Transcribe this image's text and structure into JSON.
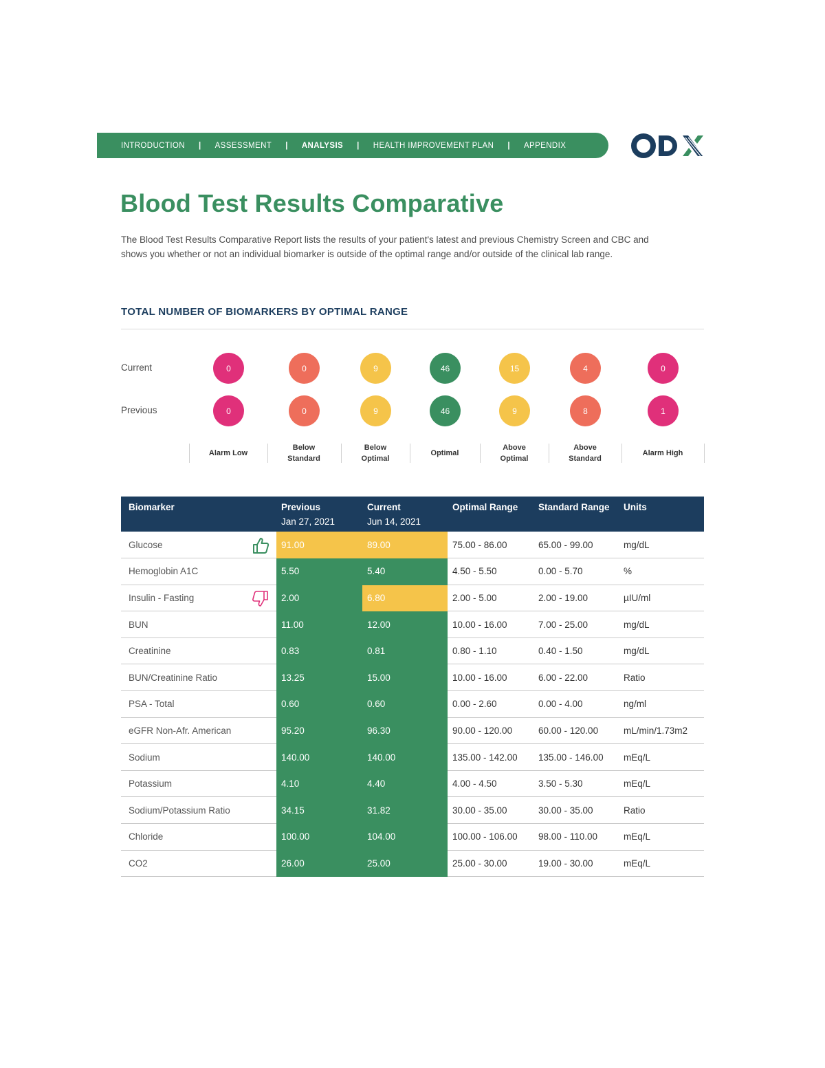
{
  "nav": {
    "items": [
      "INTRODUCTION",
      "ASSESSMENT",
      "ANALYSIS",
      "HEALTH IMPROVEMENT PLAN",
      "APPENDIX"
    ],
    "separator": "|",
    "active": "ANALYSIS"
  },
  "logo": {
    "text": "ODX",
    "colors": [
      "#1c3d5e",
      "#3a8f60"
    ]
  },
  "title": "Blood Test Results Comparative",
  "intro": "The Blood Test Results Comparative Report lists the results of your patient's latest and previous Chemistry Screen and CBC and shows you whether or not an individual biomarker is outside of the optimal range and/or outside of the clinical lab range.",
  "summary": {
    "heading": "TOTAL NUMBER OF BIOMARKERS BY OPTIMAL RANGE",
    "rows": [
      {
        "label": "Current",
        "values": [
          "0",
          "0",
          "9",
          "46",
          "15",
          "4",
          "0"
        ]
      },
      {
        "label": "Previous",
        "values": [
          "0",
          "0",
          "9",
          "46",
          "9",
          "8",
          "1"
        ]
      }
    ],
    "categories": [
      {
        "label": "Alarm Low",
        "color": "#e0307a"
      },
      {
        "label": "Below Standard",
        "color": "#ee6e5b"
      },
      {
        "label": "Below Optimal",
        "color": "#f5c44a"
      },
      {
        "label": "Optimal",
        "color": "#3a8f60"
      },
      {
        "label": "Above Optimal",
        "color": "#f5c44a"
      },
      {
        "label": "Above Standard",
        "color": "#ee6e5b"
      },
      {
        "label": "Alarm High",
        "color": "#e0307a"
      }
    ]
  },
  "table": {
    "headers": {
      "biomarker": "Biomarker",
      "previous": "Previous",
      "previous_date": "Jan 27, 2021",
      "current": "Current",
      "current_date": "Jun 14, 2021",
      "optimal": "Optimal Range",
      "standard": "Standard Range",
      "units": "Units"
    },
    "rows": [
      {
        "name": "Glucose",
        "icon": "thumbs-up-icon",
        "previous": "91.00",
        "previous_status": "yellow",
        "current": "89.00",
        "current_status": "yellow",
        "optimal": "75.00 - 86.00",
        "standard": "65.00 - 99.00",
        "units": "mg/dL"
      },
      {
        "name": "Hemoglobin A1C",
        "icon": "",
        "previous": "5.50",
        "previous_status": "green",
        "current": "5.40",
        "current_status": "green",
        "optimal": "4.50 - 5.50",
        "standard": "0.00 - 5.70",
        "units": "%"
      },
      {
        "name": "Insulin - Fasting",
        "icon": "thumbs-down-icon",
        "previous": "2.00",
        "previous_status": "green",
        "current": "6.80",
        "current_status": "yellow",
        "optimal": "2.00 - 5.00",
        "standard": "2.00 - 19.00",
        "units": "µIU/ml"
      },
      {
        "name": "BUN",
        "icon": "",
        "previous": "11.00",
        "previous_status": "green",
        "current": "12.00",
        "current_status": "green",
        "optimal": "10.00 - 16.00",
        "standard": "7.00 - 25.00",
        "units": "mg/dL"
      },
      {
        "name": "Creatinine",
        "icon": "",
        "previous": "0.83",
        "previous_status": "green",
        "current": "0.81",
        "current_status": "green",
        "optimal": "0.80 - 1.10",
        "standard": "0.40 - 1.50",
        "units": "mg/dL"
      },
      {
        "name": "BUN/Creatinine Ratio",
        "icon": "",
        "previous": "13.25",
        "previous_status": "green",
        "current": "15.00",
        "current_status": "green",
        "optimal": "10.00 - 16.00",
        "standard": "6.00 - 22.00",
        "units": "Ratio"
      },
      {
        "name": "PSA - Total",
        "icon": "",
        "previous": "0.60",
        "previous_status": "green",
        "current": "0.60",
        "current_status": "green",
        "optimal": "0.00 - 2.60",
        "standard": "0.00 - 4.00",
        "units": "ng/ml"
      },
      {
        "name": "eGFR Non-Afr. American",
        "icon": "",
        "previous": "95.20",
        "previous_status": "green",
        "current": "96.30",
        "current_status": "green",
        "optimal": "90.00 - 120.00",
        "standard": "60.00 - 120.00",
        "units": "mL/min/1.73m2"
      },
      {
        "name": "Sodium",
        "icon": "",
        "previous": "140.00",
        "previous_status": "green",
        "current": "140.00",
        "current_status": "green",
        "optimal": "135.00 - 142.00",
        "standard": "135.00 - 146.00",
        "units": "mEq/L"
      },
      {
        "name": "Potassium",
        "icon": "",
        "previous": "4.10",
        "previous_status": "green",
        "current": "4.40",
        "current_status": "green",
        "optimal": "4.00 - 4.50",
        "standard": "3.50 - 5.30",
        "units": "mEq/L"
      },
      {
        "name": "Sodium/Potassium Ratio",
        "icon": "",
        "previous": "34.15",
        "previous_status": "green",
        "current": "31.82",
        "current_status": "green",
        "optimal": "30.00 - 35.00",
        "standard": "30.00 - 35.00",
        "units": "Ratio"
      },
      {
        "name": "Chloride",
        "icon": "",
        "previous": "100.00",
        "previous_status": "green",
        "current": "104.00",
        "current_status": "green",
        "optimal": "100.00 - 106.00",
        "standard": "98.00 - 110.00",
        "units": "mEq/L"
      },
      {
        "name": "CO2",
        "icon": "",
        "previous": "26.00",
        "previous_status": "green",
        "current": "25.00",
        "current_status": "green",
        "optimal": "25.00 - 30.00",
        "standard": "19.00 - 30.00",
        "units": "mEq/L"
      }
    ]
  }
}
